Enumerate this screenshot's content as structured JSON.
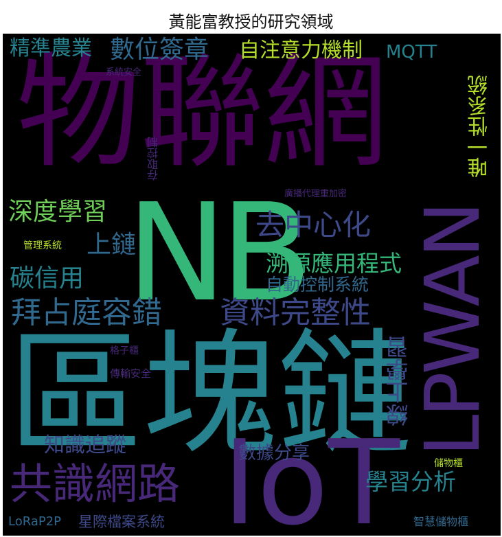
{
  "title": "黃能富教授的研究領域",
  "words": {
    "wulianwang": "物聯網",
    "quyulian": "區塊鏈",
    "nb": "NB",
    "iot": "IoT",
    "lpwan": "LPWAN",
    "gongshiwanglu": "共識網路",
    "baizhanting": "拜占庭容錯",
    "ziliaowanzheng": "資料完整性",
    "quzhongxinhua": "去中心化",
    "shenduxuexi": "深度學習",
    "suyuanyingyong": "溯源應用程式",
    "zidongkongzhi": "自動控制系統",
    "tanxinyong": "碳信用",
    "shanglian": "上鏈",
    "jingzhunnongye": "精準農業",
    "shuweiqianzhang": "數位簽章",
    "zizhuyili": "自注意力機制",
    "mqtt": "MQTT",
    "weiyixing": "唯一性系統",
    "zhishizhuizong": "知識追蹤",
    "xuexifenxi": "學習分析",
    "xianshangxuexi": "線上學習",
    "shujufenxiang": "數據分享",
    "lorap2p": "LoRaP2P",
    "xingjidangan": "星際檔案系統",
    "xitonganquan": "系統安全",
    "cunqukongzhi": "存取控制",
    "guanboadaili": "廣播代理重加密",
    "guanlixitong": "管理系統",
    "gezigui": "格子櫃",
    "chuanshuanquan": "傳輸安全",
    "chuwugui": "儲物櫃",
    "zhihuichuwugui": "智慧儲物櫃"
  },
  "colors": {
    "background": "#000000",
    "dark_purple": "#440154",
    "purple": "#482878",
    "indigo": "#3e4989",
    "blue": "#31688e",
    "teal": "#26828e",
    "green": "#35b779",
    "light_green": "#6ece58",
    "yellow": "#b5de2b"
  }
}
